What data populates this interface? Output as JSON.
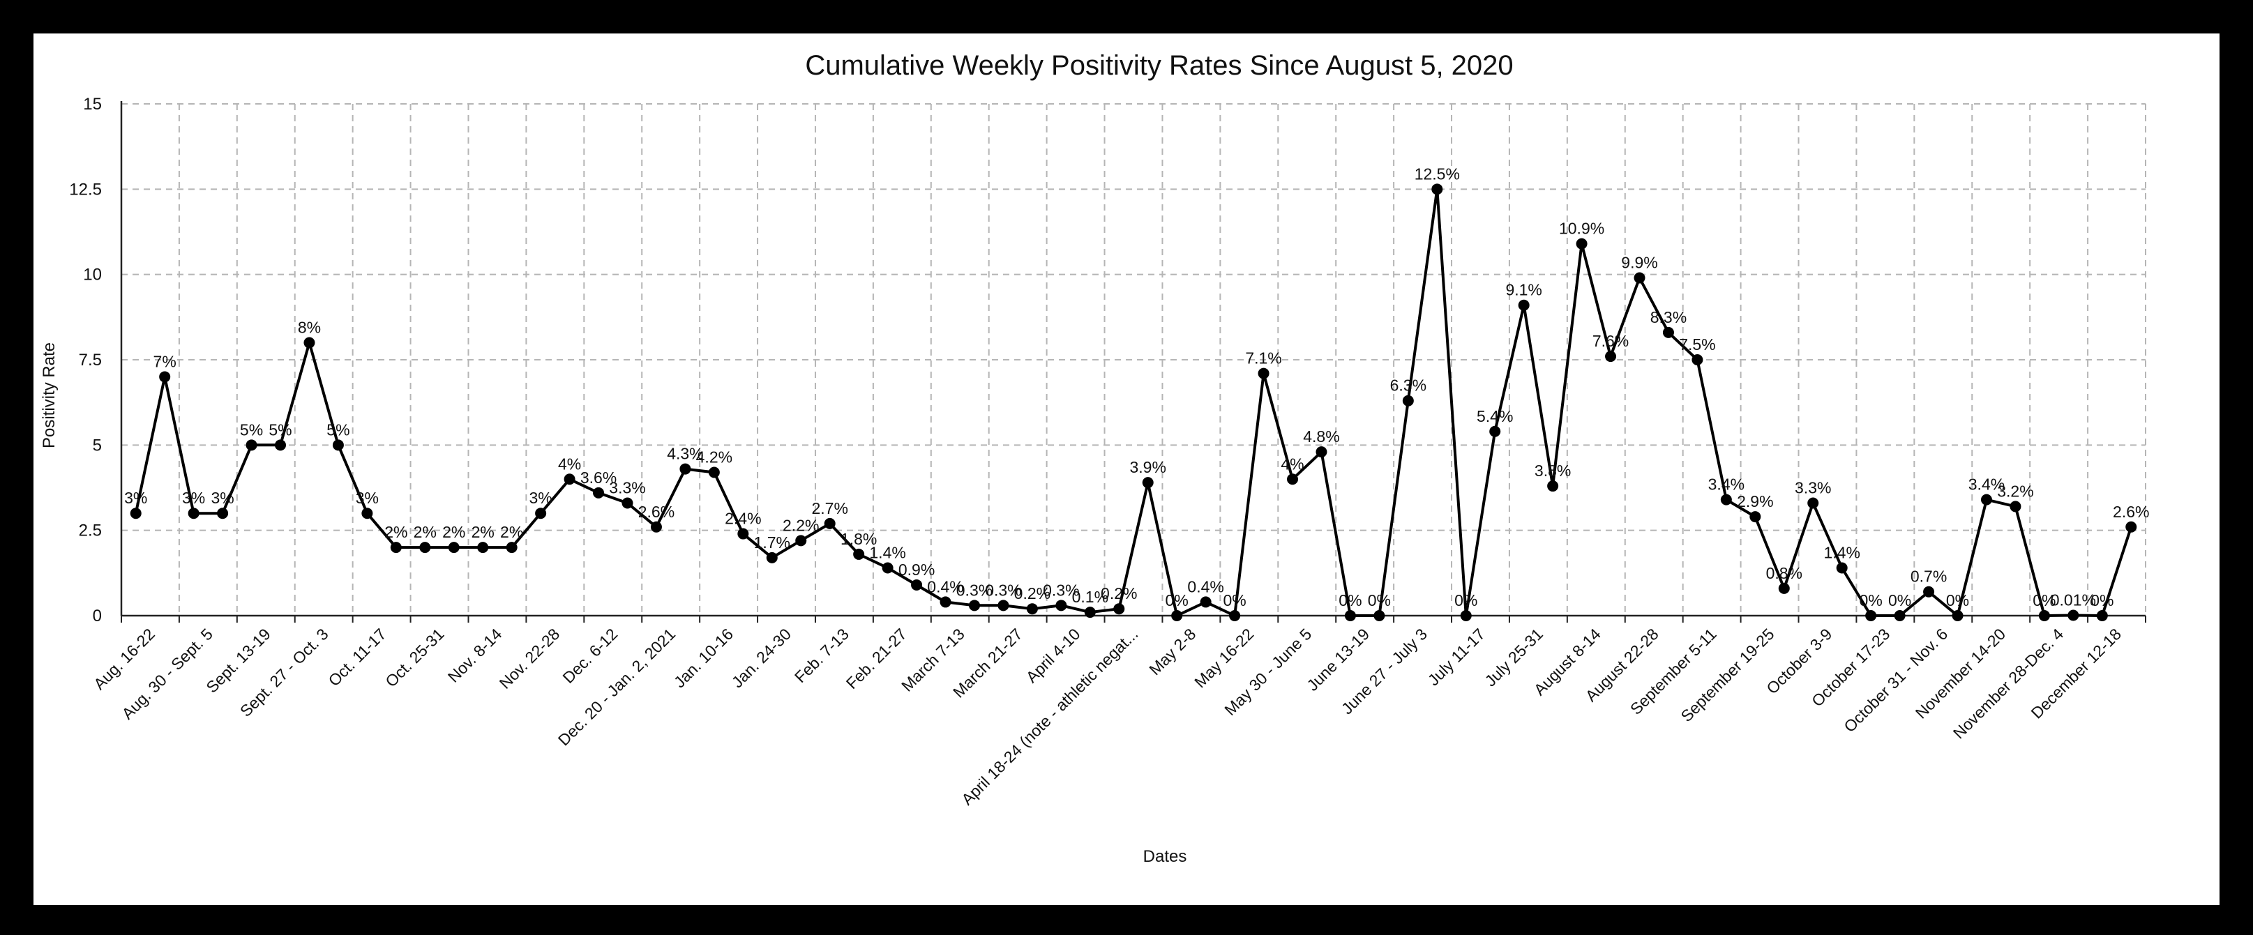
{
  "chart_data": {
    "type": "line",
    "title": "Cumulative Weekly Positivity Rates Since August 5, 2020",
    "xlabel": "Dates",
    "ylabel": "Positivity Rate",
    "ylim": [
      0,
      15
    ],
    "yticks": [
      0,
      2.5,
      5,
      7.5,
      10,
      12.5,
      15
    ],
    "ytick_labels": [
      "0",
      "2.5",
      "5",
      "7.5",
      "10",
      "12.5",
      "15"
    ],
    "grid": true,
    "legend": "none",
    "x_tick_labels": [
      "Aug. 16-22",
      "Aug. 30 - Sept. 5",
      "Sept. 13-19",
      "Sept. 27 - Oct. 3",
      "Oct. 11-17",
      "Oct. 25-31",
      "Nov. 8-14",
      "Nov. 22-28",
      "Dec. 6-12",
      "Dec. 20 - Jan. 2, 2021",
      "Jan. 10-16",
      "Jan. 24-30",
      "Feb. 7-13",
      "Feb. 21-27",
      "March 7-13",
      "March 21-27",
      "April 4-10",
      "April 18-24 (note - athletic negat...",
      "May 2-8",
      "May 16-22",
      "May 30 - June 5",
      "June 13-19",
      "June 27 - July 3",
      "July 11-17",
      "July 25-31",
      "August 8-14",
      "August 22-28",
      "September 5-11",
      "September 19-25",
      "October 3-9",
      "October 17-23",
      "October 31 - Nov. 6",
      "November 14-20",
      "November 28-Dec. 4",
      "December 12-18"
    ],
    "series": [
      {
        "values": [
          3,
          7,
          3,
          3,
          5,
          5,
          8,
          5,
          3,
          2,
          2,
          2,
          2,
          2,
          3,
          4,
          3.6,
          3.3,
          2.6,
          4.3,
          4.2,
          2.4,
          1.7,
          2.2,
          2.7,
          1.8,
          1.4,
          0.9,
          0.4,
          0.3,
          0.3,
          0.2,
          0.3,
          0.1,
          0.2,
          3.9,
          0,
          0.4,
          0,
          7.1,
          4,
          4.8,
          0,
          0,
          6.3,
          12.5,
          0,
          5.4,
          9.1,
          3.8,
          10.9,
          7.6,
          9.9,
          8.3,
          7.5,
          3.4,
          2.9,
          0.8,
          3.3,
          1.4,
          0,
          0,
          0.7,
          0,
          3.4,
          3.2,
          0,
          0.01,
          0,
          2.6
        ],
        "data_labels": [
          "3%",
          "7%",
          "3%",
          "3%",
          "5%",
          "5%",
          "8%",
          "5%",
          "3%",
          "2%",
          "2%",
          "2%",
          "2%",
          "2%",
          "3%",
          "4%",
          "3.6%",
          "3.3%",
          "2.6%",
          "4.3%",
          "4.2%",
          "2.4%",
          "1.7%",
          "2.2%",
          "2.7%",
          "1.8%",
          "1.4%",
          "0.9%",
          "0.4%",
          "0.3%",
          "0.3%",
          "0.2%",
          "0.3%",
          "0.1%",
          "0.2%",
          "3.9%",
          "0%",
          "0.4%",
          "0%",
          "7.1%",
          "4%",
          "4.8%",
          "0%",
          "0%",
          "6.3%",
          "12.5%",
          "0%",
          "5.4%",
          "9.1%",
          "3.8%",
          "10.9%",
          "7.6%",
          "9.9%",
          "8.3%",
          "7.5%",
          "3.4%",
          "2.9%",
          "0.8%",
          "3.3%",
          "1.4%",
          "0%",
          "0%",
          "0.7%",
          "0%",
          "3.4%",
          "3.2%",
          "0%",
          "0.01%",
          "0%",
          "2.6%"
        ],
        "color": "#000000"
      }
    ]
  },
  "colors": {
    "frame": "#000000",
    "background": "#ffffff",
    "line": "#000000",
    "grid": "#b5b5b5"
  }
}
